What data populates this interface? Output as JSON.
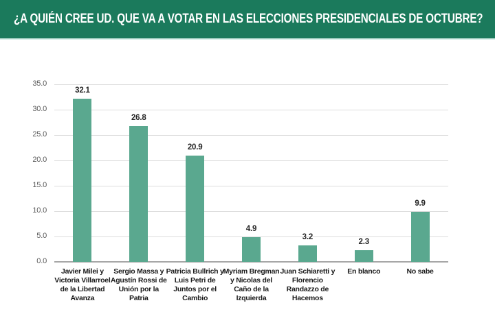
{
  "header": {
    "title": "¿A QUIÉN CREE UD. QUE VA A VOTAR EN LAS ELECCIONES PRESIDENCIALES DE OCTUBRE?"
  },
  "colors": {
    "header_bg": "#1b7a5c",
    "header_text": "#ffffff",
    "header_underline": "#d8f0ea",
    "bar": "#5aa88f",
    "grid": "#dcdcdc",
    "axis_line": "#a6a6a6",
    "tick_text": "#595959",
    "label_text": "#1a1a1a",
    "value_text": "#262626"
  },
  "chart_data": {
    "type": "bar",
    "title": "¿A QUIÉN CREE UD. QUE VA A VOTAR EN LAS ELECCIONES PRESIDENCIALES DE OCTUBRE?",
    "categories": [
      "Javier Milei y Victoria Villarroel de la Libertad Avanza",
      "Sergio Massa y Agustín Rossi de Unión por la Patria",
      "Patricia Bullrich y Luis Petri de Juntos por el Cambio",
      "Myriam Bregman y Nicolas del Caño de la Izquierda",
      "Juan Schiaretti y Florencio Randazzo de Hacemos",
      "En blanco",
      "No sabe"
    ],
    "values": [
      32.1,
      26.8,
      20.9,
      4.9,
      3.2,
      2.3,
      9.9
    ],
    "value_labels": [
      "32.1",
      "26.8",
      "20.9",
      "4.9",
      "3.2",
      "2.3",
      "9.9"
    ],
    "y_ticks": [
      0,
      5,
      10,
      15,
      20,
      25,
      30,
      35
    ],
    "y_tick_labels": [
      "0.0",
      "5.0",
      "10.0",
      "15.0",
      "20.0",
      "25.0",
      "30.0",
      "35.0"
    ],
    "ylim": [
      0,
      35
    ],
    "grid": true,
    "legend": "none"
  }
}
